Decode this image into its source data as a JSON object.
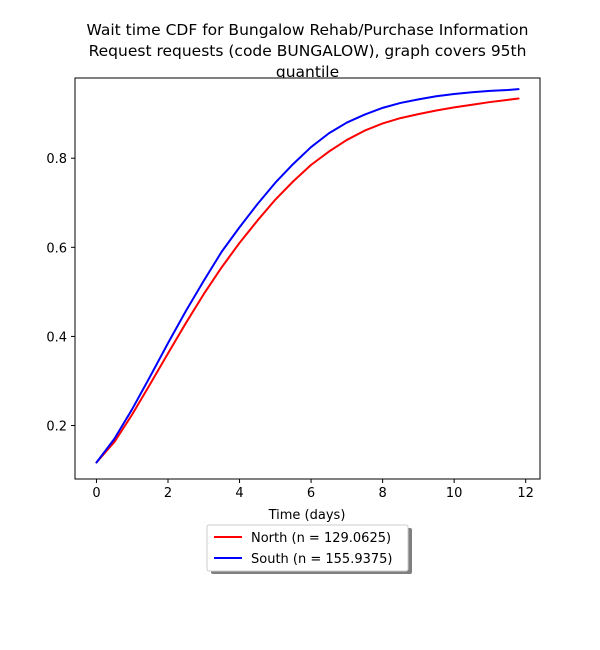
{
  "chart_data": {
    "type": "line",
    "title_lines": [
      "Wait time CDF for Bungalow Rehab/Purchase Information",
      "Request  requests (code BUNGALOW), graph covers 95th",
      "quantile"
    ],
    "xlabel": "Time (days)",
    "ylabel": "",
    "xlim": [
      -0.6,
      12.4
    ],
    "ylim": [
      0.08,
      0.98
    ],
    "xticks": [
      0,
      2,
      4,
      6,
      8,
      10,
      12
    ],
    "yticks": [
      0.2,
      0.4,
      0.6,
      0.8
    ],
    "grid": false,
    "legend_placement": "below plot, centered",
    "series": [
      {
        "name": "North (n = 129.0625)",
        "color": "#ff0000",
        "x": [
          0,
          0.5,
          1,
          1.5,
          2,
          2.5,
          3,
          3.5,
          4,
          4.5,
          5,
          5.5,
          6,
          6.5,
          7,
          7.5,
          8,
          8.5,
          9,
          9.5,
          10,
          10.5,
          11,
          11.5,
          11.8
        ],
        "y": [
          0.117,
          0.163,
          0.225,
          0.293,
          0.362,
          0.43,
          0.495,
          0.555,
          0.61,
          0.66,
          0.707,
          0.748,
          0.785,
          0.815,
          0.841,
          0.862,
          0.878,
          0.89,
          0.899,
          0.907,
          0.914,
          0.92,
          0.926,
          0.931,
          0.934
        ]
      },
      {
        "name": "South (n = 155.9375)",
        "color": "#0000ff",
        "x": [
          0,
          0.5,
          1,
          1.5,
          2,
          2.5,
          3,
          3.5,
          4,
          4.5,
          5,
          5.5,
          6,
          6.5,
          7,
          7.5,
          8,
          8.5,
          9,
          9.5,
          10,
          10.5,
          11,
          11.5,
          11.8
        ],
        "y": [
          0.117,
          0.17,
          0.237,
          0.31,
          0.385,
          0.457,
          0.525,
          0.59,
          0.645,
          0.697,
          0.745,
          0.787,
          0.825,
          0.856,
          0.88,
          0.898,
          0.913,
          0.924,
          0.932,
          0.939,
          0.944,
          0.948,
          0.951,
          0.953,
          0.955
        ]
      }
    ]
  }
}
